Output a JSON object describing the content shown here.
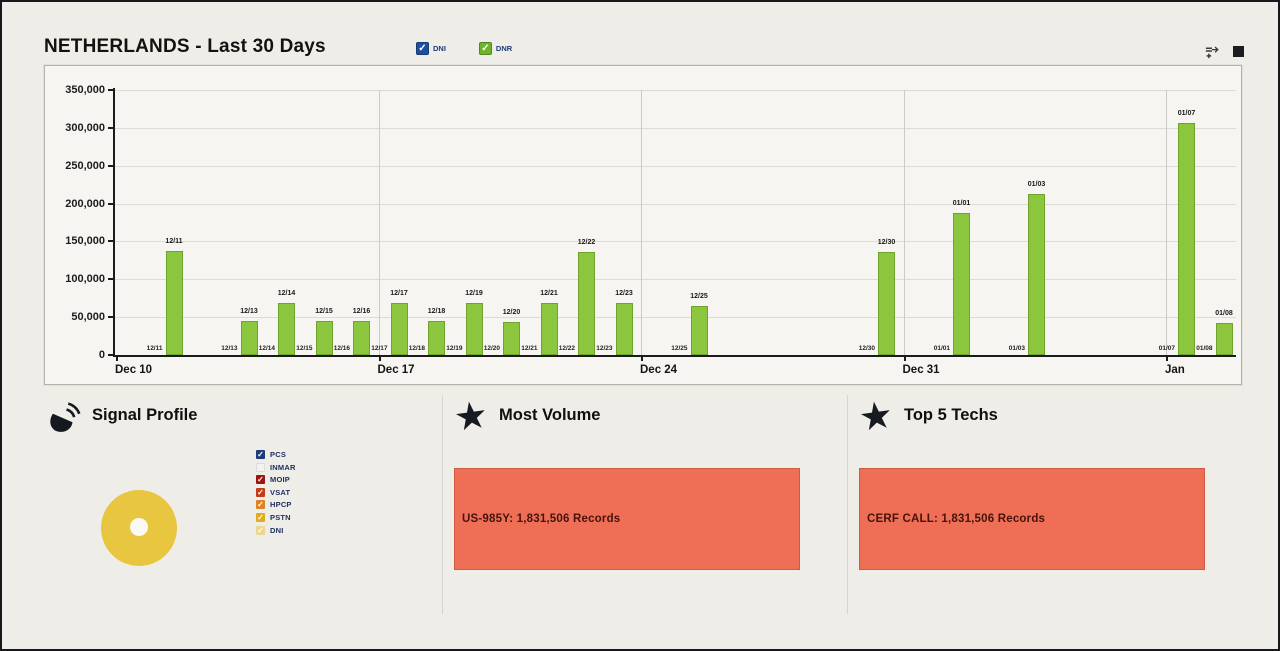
{
  "header": {
    "title": "NETHERLANDS - Last 30 Days",
    "toggles": [
      {
        "label": "DNI",
        "color": "#1d4f9e",
        "checked": true
      },
      {
        "label": "DNR",
        "color": "#6fb32c",
        "checked": true
      }
    ],
    "icons": [
      "pin-icon",
      "square-icon"
    ]
  },
  "chart_data": {
    "type": "bar",
    "title": "NETHERLANDS - Last 30 Days",
    "xlabel": "",
    "ylabel": "",
    "ylim": [
      0,
      350000
    ],
    "grid": true,
    "yticks": [
      0,
      50000,
      100000,
      150000,
      200000,
      250000,
      300000,
      350000
    ],
    "ytick_labels": [
      "0",
      "50,000",
      "100,000",
      "150,000",
      "200,000",
      "250,000",
      "300,000",
      "350,000"
    ],
    "xticks": [
      {
        "day": 0,
        "label": "Dec 10"
      },
      {
        "day": 7,
        "label": "Dec 17"
      },
      {
        "day": 14,
        "label": "Dec 24"
      },
      {
        "day": 21,
        "label": "Dec 31"
      },
      {
        "day": 28,
        "label": "Jan"
      }
    ],
    "series": [
      {
        "name": "DNI",
        "color": "#1d4f9e",
        "note": "all visible values 0 - labels shown at baseline"
      },
      {
        "name": "DNR",
        "color": "#8cc63e"
      }
    ],
    "bars": [
      {
        "date": "12/11",
        "day": 1,
        "value": 138000
      },
      {
        "date": "12/13",
        "day": 3,
        "value": 45000
      },
      {
        "date": "12/14",
        "day": 4,
        "value": 69000
      },
      {
        "date": "12/15",
        "day": 5,
        "value": 45000
      },
      {
        "date": "12/16",
        "day": 6,
        "value": 45000
      },
      {
        "date": "12/17",
        "day": 7,
        "value": 69000
      },
      {
        "date": "12/18",
        "day": 8,
        "value": 45000
      },
      {
        "date": "12/19",
        "day": 9,
        "value": 69000
      },
      {
        "date": "12/20",
        "day": 10,
        "value": 44000
      },
      {
        "date": "12/21",
        "day": 11,
        "value": 69000
      },
      {
        "date": "12/22",
        "day": 12,
        "value": 136000
      },
      {
        "date": "12/23",
        "day": 13,
        "value": 69000
      },
      {
        "date": "12/25",
        "day": 15,
        "value": 65000
      },
      {
        "date": "12/30",
        "day": 20,
        "value": 136000
      },
      {
        "date": "01/01",
        "day": 22,
        "value": 187000
      },
      {
        "date": "01/03",
        "day": 24,
        "value": 212000
      },
      {
        "date": "01/07",
        "day": 28,
        "value": 307000
      },
      {
        "date": "01/08",
        "day": 29,
        "value": 42000
      }
    ]
  },
  "panels": {
    "signal_profile": {
      "title": "Signal Profile",
      "icon": "satellite-signal-icon",
      "donut": {
        "color": "#e8c63f",
        "slices": [
          {
            "value": 100,
            "color": "#e8c63f"
          }
        ]
      },
      "legend": [
        {
          "label": "PCS",
          "color": "#1d3c7c",
          "checked": true
        },
        {
          "label": "INMAR",
          "color": "#f3f2ee",
          "checked": false
        },
        {
          "label": "MOIP",
          "color": "#9c1511",
          "checked": true
        },
        {
          "label": "VSAT",
          "color": "#c43c18",
          "checked": true
        },
        {
          "label": "HPCP",
          "color": "#e0821e",
          "checked": true
        },
        {
          "label": "PSTN",
          "color": "#e2ab1e",
          "checked": true
        },
        {
          "label": "DNI",
          "color": "#ecd78c",
          "checked": true
        }
      ]
    },
    "most_volume": {
      "title": "Most Volume",
      "icon": "star-icon",
      "highlight": {
        "text": "US-985Y: 1,831,506 Records",
        "bg": "#ee6f55"
      }
    },
    "top5_techs": {
      "title": "Top 5 Techs",
      "icon": "star-icon",
      "highlight": {
        "text": "CERF CALL: 1,831,506 Records",
        "bg": "#ee6f55"
      }
    }
  }
}
